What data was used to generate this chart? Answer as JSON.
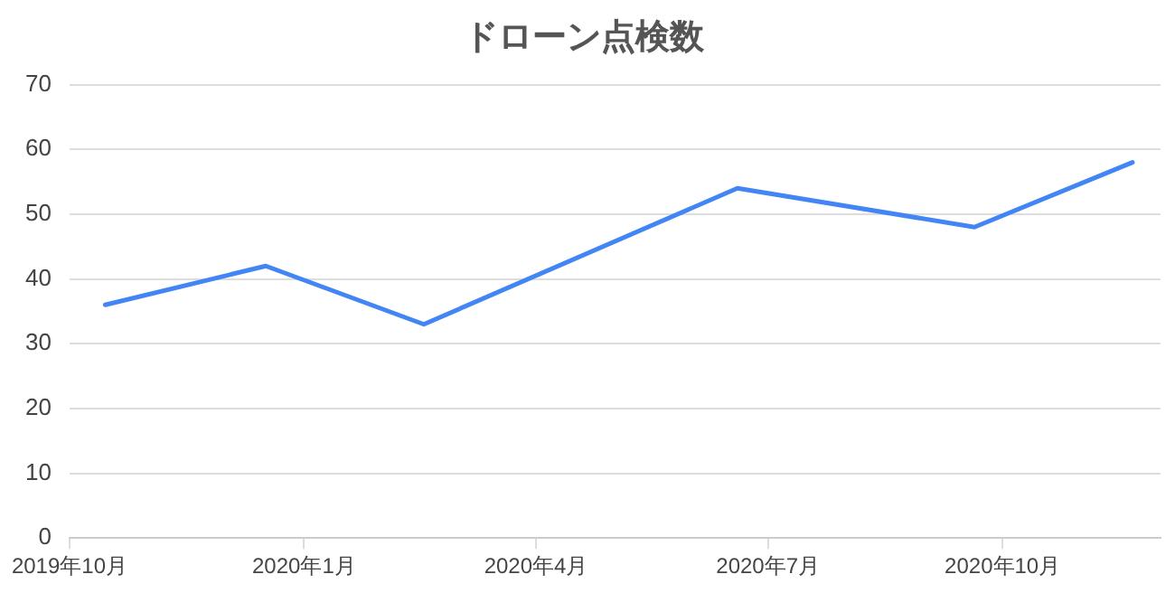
{
  "chart_data": {
    "type": "line",
    "title": "ドローン点検数",
    "x": [
      "2019-10-15",
      "2019-12-17",
      "2020-02-17",
      "2020-06-19",
      "2020-09-20",
      "2020-11-21"
    ],
    "series": [
      {
        "color": "#4285f4",
        "values": [
          36,
          42,
          33,
          54,
          48,
          58
        ]
      }
    ],
    "xlim": [
      "2019-10-01",
      "2020-12-02"
    ],
    "xticks": [
      {
        "value": "2019-10-01",
        "label": "2019年10月"
      },
      {
        "value": "2020-01-01",
        "label": "2020年1月"
      },
      {
        "value": "2020-04-01",
        "label": "2020年4月"
      },
      {
        "value": "2020-07-01",
        "label": "2020年7月"
      },
      {
        "value": "2020-10-01",
        "label": "2020年10月"
      }
    ],
    "ylim": [
      0,
      70
    ],
    "yticks": [
      0,
      10,
      20,
      30,
      40,
      50,
      60,
      70
    ],
    "grid": "y",
    "legend": false,
    "marker": "none",
    "line_style": "solid"
  }
}
